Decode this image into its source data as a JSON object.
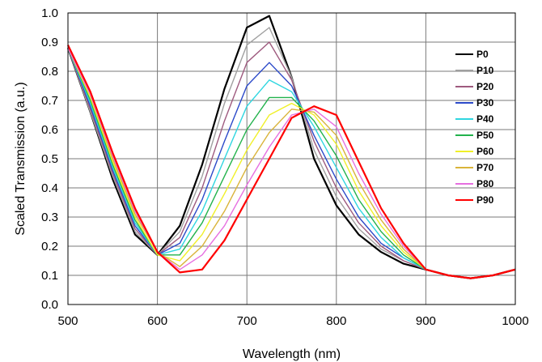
{
  "chart_data": {
    "type": "line",
    "xlabel": "Wavelength (nm)",
    "ylabel": "Scaled Transmission (a.u.)",
    "xlim": [
      500,
      1000
    ],
    "ylim": [
      0,
      1.0
    ],
    "x_ticks": [
      "500",
      "600",
      "700",
      "800",
      "900",
      "1000"
    ],
    "y_ticks": [
      "0.0",
      "0.1",
      "0.2",
      "0.3",
      "0.4",
      "0.5",
      "0.6",
      "0.7",
      "0.8",
      "0.9",
      "1.0"
    ],
    "grid": true,
    "legend_position": "right",
    "x": [
      500,
      525,
      550,
      575,
      600,
      625,
      650,
      675,
      700,
      725,
      750,
      775,
      800,
      825,
      850,
      875,
      900,
      925,
      950,
      975,
      1000
    ],
    "series": [
      {
        "name": "P0",
        "color": "#000000",
        "values": [
          0.88,
          0.66,
          0.43,
          0.24,
          0.17,
          0.27,
          0.48,
          0.74,
          0.95,
          0.99,
          0.78,
          0.5,
          0.34,
          0.24,
          0.18,
          0.14,
          0.12,
          0.1,
          0.09,
          0.1,
          0.12
        ]
      },
      {
        "name": "P10",
        "color": "#a0a0a0",
        "values": [
          0.88,
          0.66,
          0.44,
          0.25,
          0.17,
          0.25,
          0.44,
          0.69,
          0.89,
          0.95,
          0.78,
          0.53,
          0.37,
          0.26,
          0.19,
          0.15,
          0.12,
          0.1,
          0.09,
          0.1,
          0.12
        ]
      },
      {
        "name": "P20",
        "color": "#9e5a7e",
        "values": [
          0.88,
          0.67,
          0.45,
          0.26,
          0.17,
          0.23,
          0.4,
          0.63,
          0.83,
          0.9,
          0.77,
          0.56,
          0.4,
          0.28,
          0.2,
          0.15,
          0.12,
          0.1,
          0.09,
          0.1,
          0.12
        ]
      },
      {
        "name": "P30",
        "color": "#2b49c9",
        "values": [
          0.88,
          0.68,
          0.46,
          0.27,
          0.17,
          0.21,
          0.36,
          0.56,
          0.75,
          0.83,
          0.75,
          0.58,
          0.43,
          0.3,
          0.21,
          0.16,
          0.12,
          0.1,
          0.09,
          0.1,
          0.12
        ]
      },
      {
        "name": "P40",
        "color": "#2fd6e0",
        "values": [
          0.88,
          0.69,
          0.47,
          0.28,
          0.17,
          0.19,
          0.32,
          0.5,
          0.68,
          0.77,
          0.73,
          0.61,
          0.47,
          0.33,
          0.23,
          0.16,
          0.12,
          0.1,
          0.09,
          0.1,
          0.12
        ]
      },
      {
        "name": "P50",
        "color": "#22b24c",
        "values": [
          0.88,
          0.7,
          0.48,
          0.29,
          0.17,
          0.17,
          0.28,
          0.44,
          0.6,
          0.71,
          0.71,
          0.63,
          0.51,
          0.36,
          0.25,
          0.17,
          0.12,
          0.1,
          0.09,
          0.1,
          0.12
        ]
      },
      {
        "name": "P60",
        "color": "#f0f028",
        "values": [
          0.88,
          0.71,
          0.49,
          0.3,
          0.17,
          0.15,
          0.24,
          0.38,
          0.53,
          0.65,
          0.69,
          0.65,
          0.55,
          0.39,
          0.27,
          0.18,
          0.12,
          0.1,
          0.09,
          0.1,
          0.12
        ]
      },
      {
        "name": "P70",
        "color": "#d9b43a",
        "values": [
          0.88,
          0.72,
          0.5,
          0.31,
          0.18,
          0.13,
          0.2,
          0.32,
          0.47,
          0.59,
          0.67,
          0.66,
          0.58,
          0.42,
          0.29,
          0.19,
          0.12,
          0.1,
          0.09,
          0.1,
          0.12
        ]
      },
      {
        "name": "P80",
        "color": "#e66fe0",
        "values": [
          0.88,
          0.72,
          0.51,
          0.32,
          0.18,
          0.12,
          0.17,
          0.27,
          0.41,
          0.54,
          0.65,
          0.67,
          0.61,
          0.45,
          0.31,
          0.2,
          0.12,
          0.1,
          0.09,
          0.1,
          0.12
        ]
      },
      {
        "name": "P90",
        "color": "#ff0000",
        "values": [
          0.89,
          0.73,
          0.52,
          0.33,
          0.18,
          0.11,
          0.12,
          0.22,
          0.36,
          0.5,
          0.64,
          0.68,
          0.65,
          0.49,
          0.33,
          0.21,
          0.12,
          0.1,
          0.09,
          0.1,
          0.12
        ]
      }
    ]
  }
}
